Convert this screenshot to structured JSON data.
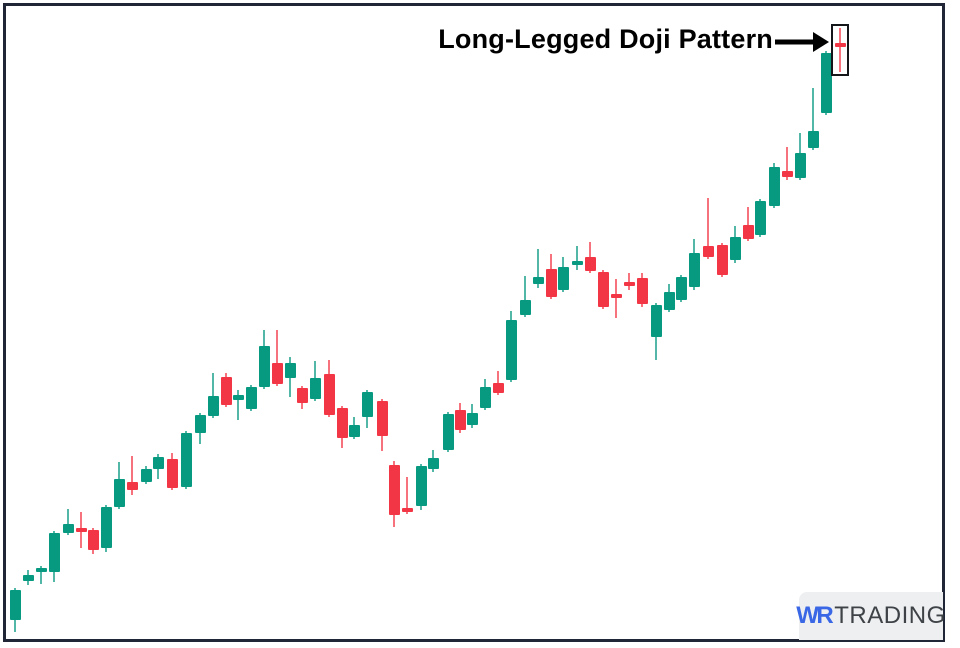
{
  "annotation": {
    "title": "Long-Legged Doji Pattern",
    "arrow_icon": "right-arrow"
  },
  "logo": {
    "prefix": "WR",
    "suffix": "TRADING"
  },
  "colors": {
    "up": "#089981",
    "down": "#f23645",
    "frame": "#212637",
    "annotation_text": "#000000",
    "highlight_box": "#15161a",
    "logo_blue": "#3a67e6",
    "logo_gray": "#3f4347",
    "logo_bg": "#edeff1",
    "background": "#ffffff"
  },
  "chart_data": {
    "type": "candlestick",
    "title": "Long-Legged Doji Pattern",
    "grid": false,
    "axes_visible": false,
    "legend": null,
    "units": "relative price units (price = 648 - pixel_y); x in px; candle = [x, open, high, low, close]",
    "ylim": [
      0,
      648
    ],
    "candle_body_width": 11,
    "highlight": {
      "candle_index": 63,
      "label": "Long-Legged Doji Pattern"
    },
    "candles": [
      [
        15,
        28,
        60,
        16,
        58
      ],
      [
        28,
        67,
        78,
        63,
        73
      ],
      [
        41,
        76,
        82,
        64,
        80
      ],
      [
        54,
        76,
        117,
        66,
        115
      ],
      [
        68,
        115,
        139,
        113,
        124
      ],
      [
        81,
        120,
        136,
        100,
        116
      ],
      [
        93,
        118,
        120,
        94,
        98
      ],
      [
        106,
        100,
        143,
        96,
        141
      ],
      [
        119,
        141,
        186,
        139,
        169
      ],
      [
        132,
        166,
        192,
        153,
        158
      ],
      [
        146,
        166,
        182,
        164,
        179
      ],
      [
        158,
        179,
        194,
        169,
        191
      ],
      [
        172,
        189,
        195,
        158,
        160
      ],
      [
        186,
        161,
        217,
        159,
        215
      ],
      [
        200,
        215,
        235,
        204,
        233
      ],
      [
        213,
        232,
        275,
        230,
        252
      ],
      [
        226,
        271,
        275,
        241,
        243
      ],
      [
        238,
        248,
        258,
        228,
        253
      ],
      [
        251,
        239,
        263,
        237,
        261
      ],
      [
        264,
        261,
        318,
        259,
        302
      ],
      [
        277,
        285,
        318,
        262,
        264
      ],
      [
        290,
        270,
        291,
        251,
        285
      ],
      [
        302,
        260,
        262,
        239,
        245
      ],
      [
        315,
        249,
        287,
        247,
        270
      ],
      [
        329,
        274,
        288,
        231,
        233
      ],
      [
        342,
        240,
        242,
        200,
        210
      ],
      [
        354,
        211,
        231,
        209,
        223
      ],
      [
        367,
        231,
        258,
        220,
        256
      ],
      [
        382,
        247,
        249,
        197,
        212
      ],
      [
        394,
        183,
        187,
        121,
        133
      ],
      [
        407,
        140,
        171,
        134,
        136
      ],
      [
        421,
        142,
        184,
        138,
        182
      ],
      [
        433,
        179,
        198,
        176,
        190
      ],
      [
        448,
        198,
        236,
        196,
        234
      ],
      [
        460,
        238,
        245,
        215,
        218
      ],
      [
        472,
        223,
        244,
        220,
        235
      ],
      [
        485,
        240,
        269,
        238,
        261
      ],
      [
        498,
        265,
        277,
        253,
        255
      ],
      [
        511,
        268,
        337,
        266,
        328
      ],
      [
        525,
        333,
        372,
        331,
        348
      ],
      [
        538,
        364,
        399,
        360,
        371
      ],
      [
        551,
        379,
        394,
        349,
        351
      ],
      [
        563,
        358,
        391,
        356,
        381
      ],
      [
        577,
        383,
        402,
        378,
        387
      ],
      [
        590,
        391,
        406,
        375,
        377
      ],
      [
        603,
        376,
        378,
        339,
        341
      ],
      [
        616,
        354,
        369,
        330,
        350
      ],
      [
        629,
        366,
        375,
        358,
        362
      ],
      [
        642,
        370,
        375,
        341,
        344
      ],
      [
        656,
        311,
        345,
        288,
        343
      ],
      [
        669,
        338,
        364,
        336,
        356
      ],
      [
        681,
        348,
        373,
        346,
        371
      ],
      [
        694,
        361,
        409,
        358,
        395
      ],
      [
        708,
        402,
        450,
        389,
        391
      ],
      [
        722,
        403,
        405,
        371,
        373
      ],
      [
        735,
        388,
        422,
        385,
        411
      ],
      [
        748,
        423,
        441,
        407,
        409
      ],
      [
        760,
        413,
        449,
        411,
        447
      ],
      [
        774,
        442,
        485,
        440,
        481
      ],
      [
        787,
        477,
        501,
        468,
        471
      ],
      [
        800,
        470,
        515,
        468,
        495
      ],
      [
        813,
        500,
        560,
        498,
        517
      ],
      [
        826,
        535,
        597,
        533,
        595
      ],
      [
        840,
        605,
        620,
        576,
        601
      ]
    ]
  }
}
